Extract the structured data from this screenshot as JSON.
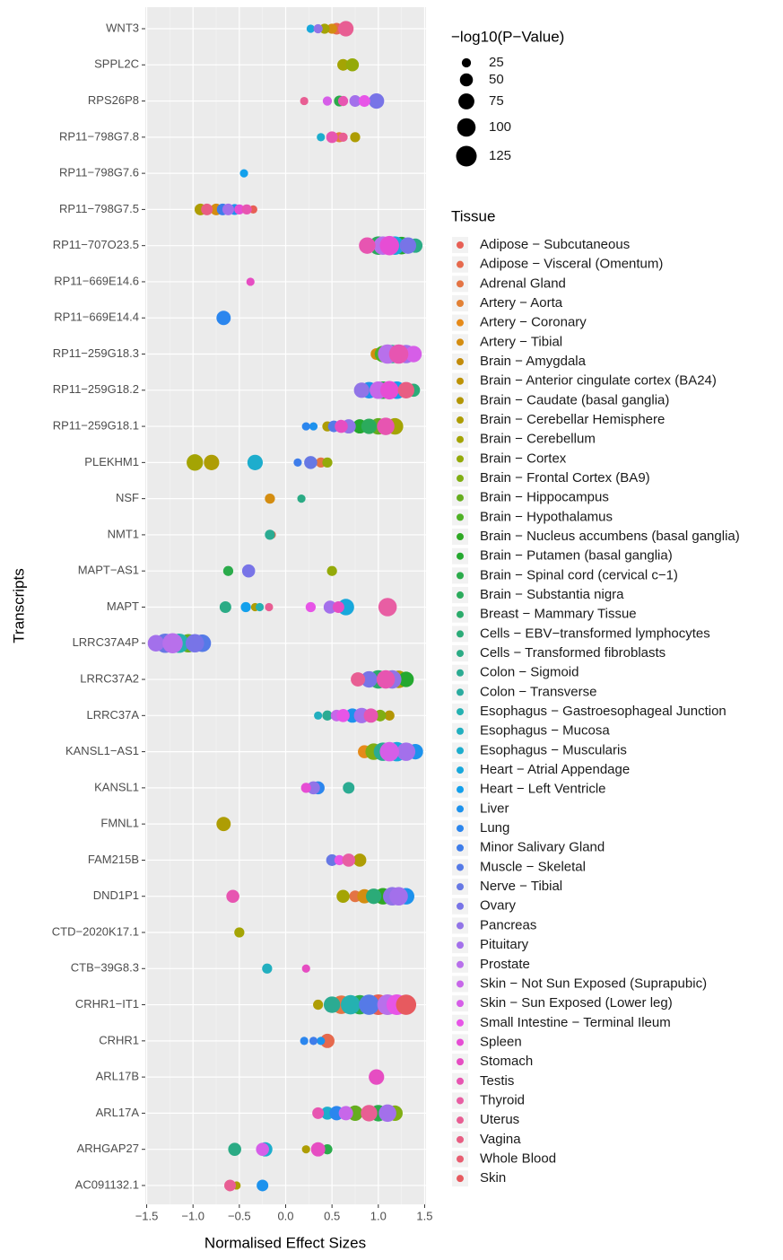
{
  "chart_data": {
    "type": "scatter",
    "xlabel": "Normalised Effect Sizes",
    "ylabel": "Transcripts",
    "categories": [
      "WNT3",
      "SPPL2C",
      "RPS26P8",
      "RP11−798G7.8",
      "RP11−798G7.6",
      "RP11−798G7.5",
      "RP11−707O23.5",
      "RP11−669E14.6",
      "RP11−669E14.4",
      "RP11−259G18.3",
      "RP11−259G18.2",
      "RP11−259G18.1",
      "PLEKHM1",
      "NSF",
      "NMT1",
      "MAPT−AS1",
      "MAPT",
      "LRRC37A4P",
      "LRRC37A2",
      "LRRC37A",
      "KANSL1−AS1",
      "KANSL1",
      "FMNL1",
      "FAM215B",
      "DND1P1",
      "CTD−2020K17.1",
      "CTB−39G8.3",
      "CRHR1−IT1",
      "CRHR1",
      "ARL17B",
      "ARL17A",
      "ARHGAP27",
      "AC091132.1"
    ],
    "xlim": [
      -1.515,
      1.515
    ],
    "xticks": [
      {
        "value": -1.5,
        "label": "−1.5"
      },
      {
        "value": -1.0,
        "label": "−1.0"
      },
      {
        "value": -0.5,
        "label": "−0.5"
      },
      {
        "value": 0.0,
        "label": "0.0"
      },
      0.5,
      {
        "value": 1.0,
        "label": "1.0"
      },
      {
        "value": 1.5,
        "label": "1.5"
      }
    ],
    "grid": true,
    "size_title": "−log10(P−Value)",
    "size_breaks": [
      25,
      50,
      75,
      100,
      125
    ],
    "legend_title": "Tissue",
    "series": [
      {
        "name": "Adipose − Subcutaneous",
        "color": "hsl(4,75%,62%)",
        "x": [
          -0.35,
          1.0
        ],
        "y": [
          "RP11−798G7.5",
          "CRHR1−IT1"
        ],
        "size": [
          20,
          125
        ]
      },
      {
        "name": "Adipose − Visceral (Omentum)",
        "color": "hsl(11,75%,60%)",
        "x": [
          0.55,
          -0.15,
          0.45
        ],
        "y": [
          "WNT3",
          "NMT1",
          "CRHR1"
        ],
        "size": [
          40,
          20,
          60
        ]
      },
      {
        "name": "Adrenal Gland",
        "color": "hsl(18,75%,58%)",
        "x": [
          0.38,
          0.75,
          0.6
        ],
        "y": [
          "PLEKHM1",
          "DND1P1",
          "CRHR1−IT1"
        ],
        "size": [
          30,
          40,
          100
        ]
      },
      {
        "name": "Artery − Aorta",
        "color": "hsl(26,75%,55%)",
        "x": [
          0.58
        ],
        "y": [
          "RP11−798G7.8"
        ],
        "size": [
          30
        ]
      },
      {
        "name": "Artery − Coronary",
        "color": "hsl(33,80%,50%)",
        "x": [
          0.85
        ],
        "y": [
          "KANSL1−AS1"
        ],
        "size": [
          50
        ]
      },
      {
        "name": "Artery − Tibial",
        "color": "hsl(38,85%,45%)",
        "x": [
          0.5,
          -0.75,
          0.98,
          -0.17,
          0.85
        ],
        "y": [
          "WNT3",
          "RP11−798G7.5",
          "RP11−259G18.3",
          "NSF",
          "DND1P1"
        ],
        "size": [
          30,
          40,
          40,
          30,
          60
        ]
      },
      {
        "name": "Brain − Amygdala",
        "color": "hsl(42,90%,40%)",
        "x": [],
        "y": [],
        "size": []
      },
      {
        "name": "Brain − Anterior cingulate cortex (BA24)",
        "color": "hsl(46,95%,38%)",
        "x": [],
        "y": [],
        "size": []
      },
      {
        "name": "Brain − Caudate (basal ganglia)",
        "color": "hsl(50,95%,36%)",
        "x": [
          1.12
        ],
        "y": [
          "LRRC37A"
        ],
        "size": [
          30
        ]
      },
      {
        "name": "Brain − Cerebellar Hemisphere",
        "color": "hsl(54,95%,35%)",
        "x": [
          0.75,
          -0.92,
          0.45,
          -0.8,
          -0.33,
          1.22,
          -0.67,
          0.8,
          0.22,
          -0.53,
          0.35
        ],
        "y": [
          "RP11−798G7.8",
          "RP11−798G7.5",
          "RP11−259G18.1",
          "PLEKHM1",
          "MAPT",
          "LRRC37A2",
          "FMNL1",
          "FAM215B",
          "ARHGAP27",
          "AC091132.1",
          "CRHR1−IT1"
        ],
        "size": [
          30,
          40,
          30,
          70,
          20,
          90,
          60,
          50,
          20,
          20,
          30
        ]
      },
      {
        "name": "Brain − Cerebellum",
        "color": "hsl(60,95%,33%)",
        "x": [
          0.42,
          0.62,
          1.18,
          -0.98,
          0.62,
          -0.5
        ],
        "y": [
          "WNT3",
          "SPPL2C",
          "RP11−259G18.1",
          "PLEKHM1",
          "DND1P1",
          "CTD−2020K17.1"
        ],
        "size": [
          30,
          40,
          80,
          80,
          50,
          30
        ]
      },
      {
        "name": "Brain − Cortex",
        "color": "hsl(68,90%,35%)",
        "x": [
          0.72,
          0.45,
          0.5
        ],
        "y": [
          "SPPL2C",
          "PLEKHM1",
          "MAPT−AS1"
        ],
        "size": [
          50,
          30,
          30
        ]
      },
      {
        "name": "Brain − Frontal Cortex (BA9)",
        "color": "hsl(78,80%,38%)",
        "x": [
          1.02,
          0.95,
          1.18
        ],
        "y": [
          "LRRC37A",
          "KANSL1−AS1",
          "ARL17A"
        ],
        "size": [
          40,
          80,
          70
        ]
      },
      {
        "name": "Brain − Hippocampus",
        "color": "hsl(90,70%,40%)",
        "x": [
          1.0,
          -1.05,
          0.75
        ],
        "y": [
          "RP11−259G18.1",
          "LRRC37A4P",
          "ARL17A"
        ],
        "size": [
          80,
          100,
          70
        ]
      },
      {
        "name": "Brain − Hypothalamus",
        "color": "hsl(102,65%,42%)",
        "x": [
          1.05
        ],
        "y": [
          "RP11−259G18.3"
        ],
        "size": [
          80
        ]
      },
      {
        "name": "Brain − Nucleus accumbens (basal ganglia)",
        "color": "hsl(115,65%,40%)",
        "x": [
          1.05
        ],
        "y": [
          "DND1P1"
        ],
        "size": [
          80
        ]
      },
      {
        "name": "Brain − Putamen (basal ganglia)",
        "color": "hsl(125,65%,40%)",
        "x": [
          1.25,
          0.8,
          1.3
        ],
        "y": [
          "RP11−707O23.5",
          "RP11−259G18.1",
          "LRRC37A2"
        ],
        "size": [
          90,
          60,
          70
        ]
      },
      {
        "name": "Brain − Spinal cord (cervical c−1)",
        "color": "hsl(135,60%,42%)",
        "x": [
          0.58,
          1.05,
          -0.62,
          0.8,
          1.0,
          0.45
        ],
        "y": [
          "RPS26P8",
          "RP11−259G18.2",
          "MAPT−AS1",
          "CRHR1−IT1",
          "ARL17A",
          "ARHGAP27"
        ],
        "size": [
          35,
          90,
          30,
          110,
          80,
          30
        ]
      },
      {
        "name": "Brain − Substantia nigra",
        "color": "hsl(143,60%,42%)",
        "x": [
          1.0,
          0.9
        ],
        "y": [
          "RP11−707O23.5",
          "RP11−259G18.1"
        ],
        "size": [
          100,
          70
        ]
      },
      {
        "name": "Breast − Mammary Tissue",
        "color": "hsl(150,60%,42%)",
        "x": [
          1.0
        ],
        "y": [
          "LRRC37A2"
        ],
        "size": [
          100
        ]
      },
      {
        "name": "Cells − EBV−transformed lymphocytes",
        "color": "hsl(156,60%,42%)",
        "x": [
          1.38,
          0.95
        ],
        "y": [
          "RP11−259G18.2",
          "DND1P1"
        ],
        "size": [
          50,
          70
        ]
      },
      {
        "name": "Cells − Transformed fibroblasts",
        "color": "hsl(162,60%,42%)",
        "x": [
          1.4,
          0.17,
          -0.65,
          -0.55
        ],
        "y": [
          "RP11−707O23.5",
          "NSF",
          "MAPT",
          "ARHGAP27"
        ],
        "size": [
          60,
          20,
          40,
          50
        ]
      },
      {
        "name": "Colon − Sigmoid",
        "color": "hsl(168,60%,42%)",
        "x": [
          1.15,
          -0.17,
          1.05,
          0.68,
          0.45,
          0.5
        ],
        "y": [
          "RP11−259G18.3",
          "NMT1",
          "KANSL1−AS1",
          "KANSL1",
          "LRRC37A",
          "CRHR1−IT1"
        ],
        "size": [
          100,
          30,
          100,
          40,
          30,
          80
        ]
      },
      {
        "name": "Colon − Transverse",
        "color": "hsl(174,60%,42%)",
        "x": [],
        "y": [],
        "size": []
      },
      {
        "name": "Esophagus − Gastroesophageal Junction",
        "color": "hsl(180,65%,42%)",
        "x": [
          -0.28,
          -1.15,
          0.7
        ],
        "y": [
          "MAPT",
          "LRRC37A4P",
          "CRHR1−IT1"
        ],
        "size": [
          20,
          110,
          110
        ]
      },
      {
        "name": "Esophagus − Mucosa",
        "color": "hsl(186,70%,44%)",
        "x": [
          0.35,
          -0.2
        ],
        "y": [
          "LRRC37A",
          "CTB−39G8.3"
        ],
        "size": [
          20,
          30
        ]
      },
      {
        "name": "Esophagus − Muscularis",
        "color": "hsl(191,75%,46%)",
        "x": [
          0.38,
          -0.33,
          0.45,
          -0.22
        ],
        "y": [
          "RP11−798G7.8",
          "PLEKHM1",
          "ARL17A",
          "ARHGAP27"
        ],
        "size": [
          20,
          70,
          50,
          60
        ]
      },
      {
        "name": "Heart − Atrial Appendage",
        "color": "hsl(196,80%,48%)",
        "x": [
          0.27,
          1.18,
          0.65,
          1.2
        ],
        "y": [
          "WNT3",
          "RP11−707O23.5",
          "MAPT",
          "KANSL1−AS1"
        ],
        "size": [
          20,
          100,
          80,
          110
        ]
      },
      {
        "name": "Heart − Left Ventricle",
        "color": "hsl(201,85%,50%)",
        "x": [
          -0.45,
          1.2,
          -0.43
        ],
        "y": [
          "RP11−798G7.6",
          "RP11−259G18.2",
          "MAPT"
        ],
        "size": [
          20,
          90,
          30
        ]
      },
      {
        "name": "Liver",
        "color": "hsl(206,85%,52%)",
        "x": [
          -0.55,
          0.9,
          0.3,
          0.72,
          1.4,
          1.3,
          0.38,
          -0.25
        ],
        "y": [
          "RP11−798G7.5",
          "RP11−259G18.2",
          "RP11−259G18.1",
          "LRRC37A",
          "KANSL1−AS1",
          "DND1P1",
          "CRHR1",
          "AC091132.1"
        ],
        "size": [
          35,
          80,
          20,
          60,
          70,
          80,
          20,
          40
        ]
      },
      {
        "name": "Lung",
        "color": "hsl(212,85%,55%)",
        "x": [
          -0.67,
          0.22,
          0.35,
          0.2,
          0.55
        ],
        "y": [
          "RP11−669E14.4",
          "RP11−259G18.1",
          "KANSL1",
          "CRHR1",
          "ARL17A"
        ],
        "size": [
          60,
          20,
          50,
          20,
          60
        ]
      },
      {
        "name": "Minor Salivary Gland",
        "color": "hsl(218,80%,58%)",
        "x": [
          -0.68,
          0.13,
          0.3
        ],
        "y": [
          "RP11−798G7.5",
          "PLEKHM1",
          "CRHR1"
        ],
        "size": [
          40,
          20,
          20
        ]
      },
      {
        "name": "Muscle − Skeletal",
        "color": "hsl(225,75%,62%)",
        "x": [
          0.52,
          -0.9,
          0.9
        ],
        "y": [
          "RP11−259G18.1",
          "LRRC37A4P",
          "CRHR1−IT1"
        ],
        "size": [
          40,
          90,
          120
        ]
      },
      {
        "name": "Nerve − Tibial",
        "color": "hsl(232,70%,65%)",
        "x": [
          0.27,
          -1.3,
          0.5
        ],
        "y": [
          "PLEKHM1",
          "LRRC37A4P",
          "FAM215B"
        ],
        "size": [
          50,
          110,
          40
        ]
      },
      {
        "name": "Ovary",
        "color": "hsl(242,70%,68%)",
        "x": [
          0.98,
          1.32,
          -0.4,
          -0.98,
          0.9
        ],
        "y": [
          "RPS26P8",
          "RP11−707O23.5",
          "MAPT−AS1",
          "LRRC37A4P",
          "LRRC37A2"
        ],
        "size": [
          70,
          80,
          50,
          100,
          80
        ]
      },
      {
        "name": "Pancreas",
        "color": "hsl(255,70%,68%)",
        "x": [
          0.35,
          0.82,
          0.68,
          1.15,
          0.3,
          1.15
        ],
        "y": [
          "WNT3",
          "RP11−259G18.2",
          "RP11−259G18.1",
          "LRRC37A2",
          "KANSL1",
          "DND1P1"
        ],
        "size": [
          25,
          70,
          60,
          100,
          50,
          100
        ]
      },
      {
        "name": "Pituitary",
        "color": "hsl(265,75%,68%)",
        "x": [
          0.75,
          -0.62,
          1.3,
          0.48,
          -1.4,
          0.82,
          1.3,
          1.22,
          1.1
        ],
        "y": [
          "RPS26P8",
          "RP11−798G7.5",
          "RP11−259G18.3",
          "MAPT",
          "LRRC37A4P",
          "LRRC37A",
          "KANSL1−AS1",
          "DND1P1",
          "ARL17A"
        ],
        "size": [
          40,
          40,
          100,
          50,
          80,
          70,
          100,
          100,
          90
        ]
      },
      {
        "name": "Prostate",
        "color": "hsl(275,75%,68%)",
        "x": [
          1.05,
          1.1,
          -1.22,
          1.1
        ],
        "y": [
          "RP11−707O23.5",
          "RP11−259G18.3",
          "LRRC37A4P",
          "CRHR1−IT1"
        ],
        "size": [
          100,
          110,
          120,
          125
        ]
      },
      {
        "name": "Skin − Not Sun Exposed (Suprapubic)",
        "color": "hsl(284,75%,66%)",
        "x": [
          1.0,
          0.55,
          0.65
        ],
        "y": [
          "RP11−259G18.2",
          "LRRC37A",
          "ARL17A"
        ],
        "size": [
          90,
          40,
          60
        ]
      },
      {
        "name": "Skin − Sun Exposed (Lower leg)",
        "color": "hsl(292,75%,64%)",
        "x": [
          0.45,
          1.38,
          1.12,
          -0.25
        ],
        "y": [
          "RPS26P8",
          "RP11−259G18.3",
          "KANSL1−AS1",
          "ARHGAP27"
        ],
        "size": [
          25,
          80,
          110,
          50
        ]
      },
      {
        "name": "Small Intestine − Terminal Ileum",
        "color": "hsl(300,75%,62%)",
        "x": [
          0.85,
          0.27,
          0.62,
          0.58,
          1.2
        ],
        "y": [
          "RPS26P8",
          "MAPT",
          "LRRC37A",
          "FAM215B",
          "CRHR1−IT1"
        ],
        "size": [
          40,
          30,
          50,
          30,
          125
        ]
      },
      {
        "name": "Spleen",
        "color": "hsl(307,75%,60%)",
        "x": [
          -0.5,
          1.12,
          1.12,
          0.22
        ],
        "y": [
          "RP11−798G7.5",
          "RP11−707O23.5",
          "RP11−259G18.2",
          "KANSL1"
        ],
        "size": [
          30,
          110,
          100,
          30
        ]
      },
      {
        "name": "Stomach",
        "color": "hsl(314,75%,60%)",
        "x": [
          -0.38,
          0.6,
          0.57,
          0.22,
          0.98,
          0.35
        ],
        "y": [
          "RP11−669E14.6",
          "RP11−259G18.1",
          "MAPT",
          "CTB−39G8.3",
          "ARL17B",
          "ARHGAP27"
        ],
        "size": [
          20,
          50,
          40,
          20,
          70,
          60
        ]
      },
      {
        "name": "Testis",
        "color": "hsl(322,75%,62%)",
        "x": [
          0.62,
          0.5,
          -0.42,
          0.88,
          1.22,
          1.08,
          1.08,
          0.92,
          -0.57,
          0.35
        ],
        "y": [
          "RPS26P8",
          "RP11−798G7.8",
          "RP11−798G7.5",
          "RP11−707O23.5",
          "RP11−259G18.3",
          "RP11−259G18.1",
          "LRRC37A2",
          "LRRC37A",
          "DND1P1",
          "ARL17A"
        ],
        "size": [
          30,
          40,
          30,
          80,
          110,
          90,
          100,
          60,
          50,
          40
        ]
      },
      {
        "name": "Thyroid",
        "color": "hsl(330,75%,64%)",
        "x": [
          1.1,
          0.68
        ],
        "y": [
          "MAPT",
          "FAM215B"
        ],
        "size": [
          100,
          50
        ]
      },
      {
        "name": "Uterus",
        "color": "hsl(337,75%,64%)",
        "x": [
          0.65,
          0.2,
          0.62,
          -0.18,
          0.78,
          0.9,
          -0.6
        ],
        "y": [
          "WNT3",
          "RPS26P8",
          "RP11−798G7.8",
          "MAPT",
          "LRRC37A2",
          "ARL17A",
          "AC091132.1"
        ],
        "size": [
          70,
          20,
          25,
          20,
          60,
          80,
          40
        ]
      },
      {
        "name": "Vagina",
        "color": "hsl(344,75%,64%)",
        "x": [
          -0.85,
          1.3
        ],
        "y": [
          "RP11−798G7.5",
          "RP11−259G18.2"
        ],
        "size": [
          40,
          80
        ]
      },
      {
        "name": "Whole Blood",
        "color": "hsl(352,75%,64%)",
        "x": [],
        "y": [],
        "size": []
      },
      {
        "name": "Skin",
        "color": "hsl(358,75%,63%)",
        "x": [
          1.3
        ],
        "y": [
          "CRHR1−IT1"
        ],
        "size": [
          120
        ]
      }
    ]
  }
}
